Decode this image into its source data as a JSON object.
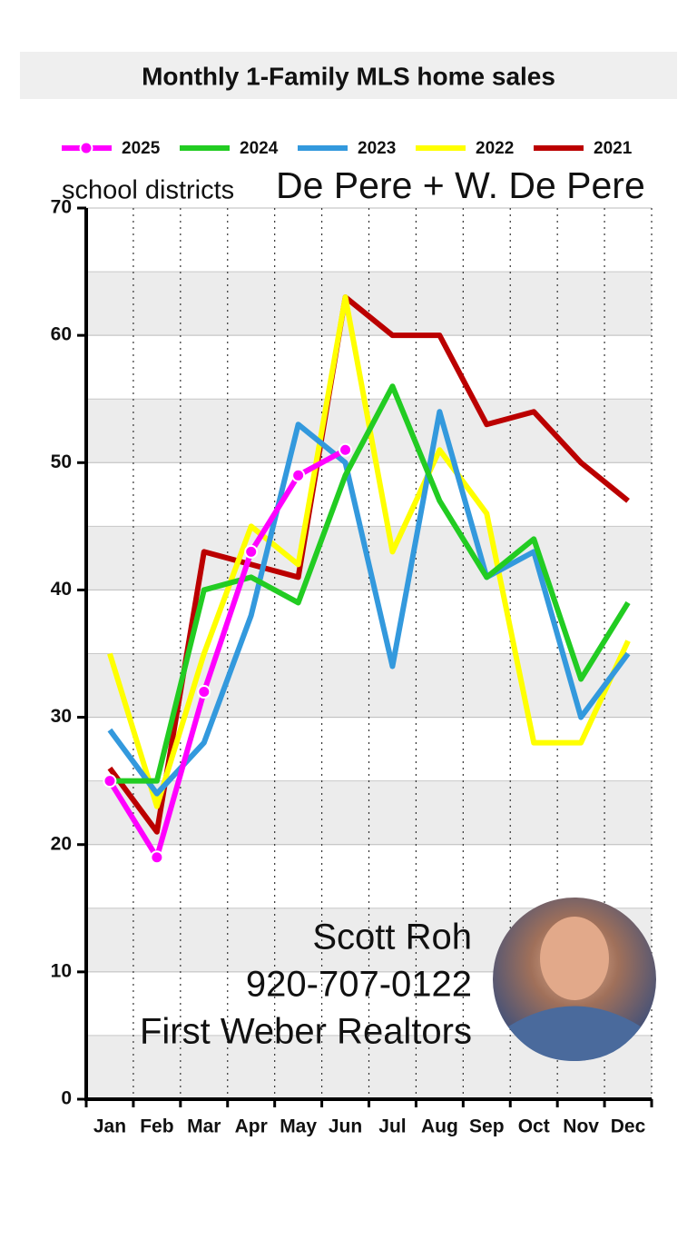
{
  "chart_data": {
    "type": "line",
    "title": "Monthly 1-Family MLS home sales",
    "subtitle": [
      "school districts",
      "De Pere + W. De Pere"
    ],
    "annotations": [
      "Scott Roh",
      "920-707-0122",
      "First Weber Realtors"
    ],
    "categories": [
      "Jan",
      "Feb",
      "Mar",
      "Apr",
      "May",
      "Jun",
      "Jul",
      "Aug",
      "Sep",
      "Oct",
      "Nov",
      "Dec"
    ],
    "series": [
      {
        "name": "2025",
        "color": "#ff00ff",
        "markers": true,
        "values": [
          25,
          19,
          32,
          43,
          49,
          51,
          null,
          null,
          null,
          null,
          null,
          null
        ]
      },
      {
        "name": "2024",
        "color": "#22cc22",
        "values": [
          25,
          25,
          40,
          41,
          39,
          49,
          56,
          47,
          41,
          44,
          33,
          39
        ]
      },
      {
        "name": "2023",
        "color": "#3399dd",
        "values": [
          29,
          24,
          28,
          38,
          53,
          50,
          34,
          54,
          41,
          43,
          30,
          35
        ]
      },
      {
        "name": "2022",
        "color": "#ffff00",
        "values": [
          35,
          23,
          35,
          45,
          42,
          63,
          43,
          51,
          46,
          28,
          28,
          36
        ]
      },
      {
        "name": "2021",
        "color": "#bb0000",
        "values": [
          26,
          21,
          43,
          42,
          41,
          63,
          60,
          60,
          53,
          54,
          50,
          47
        ]
      }
    ],
    "ylim": [
      0,
      70
    ],
    "yticks": [
      0,
      10,
      20,
      30,
      40,
      50,
      60,
      70
    ],
    "grid": true
  }
}
